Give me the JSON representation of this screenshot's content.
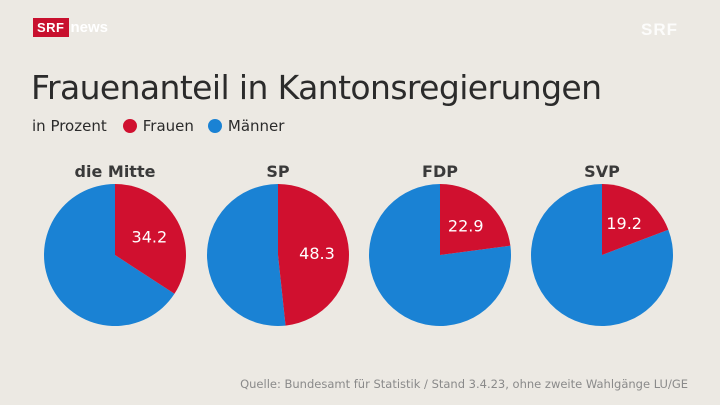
{
  "branding": {
    "logo_box_text": "SRF",
    "logo_news_text": "news",
    "watermark_text": "SRF"
  },
  "header": {
    "title": "Frauenanteil in Kantonsregierungen",
    "unit_label": "in Prozent"
  },
  "legend": [
    {
      "label": "Frauen",
      "color": "#d0102f"
    },
    {
      "label": "Männer",
      "color": "#1a82d4"
    }
  ],
  "chart_data": {
    "type": "pie",
    "title": "Frauenanteil in Kantonsregierungen",
    "subtitle": "in Prozent",
    "series_names": [
      "Frauen",
      "Männer"
    ],
    "colors": {
      "Frauen": "#d0102f",
      "Männer": "#1a82d4"
    },
    "pies": [
      {
        "label": "die Mitte",
        "Frauen": 34.2,
        "Männer": 65.8
      },
      {
        "label": "SP",
        "Frauen": 48.3,
        "Männer": 51.7
      },
      {
        "label": "FDP",
        "Frauen": 22.9,
        "Männer": 77.1
      },
      {
        "label": "SVP",
        "Frauen": 19.2,
        "Männer": 80.8
      }
    ],
    "legend_position": "top-left"
  },
  "footer": {
    "source": "Quelle: Bundesamt für Statistik / Stand 3.4.23, ohne zweite Wahlgänge LU/GE"
  }
}
